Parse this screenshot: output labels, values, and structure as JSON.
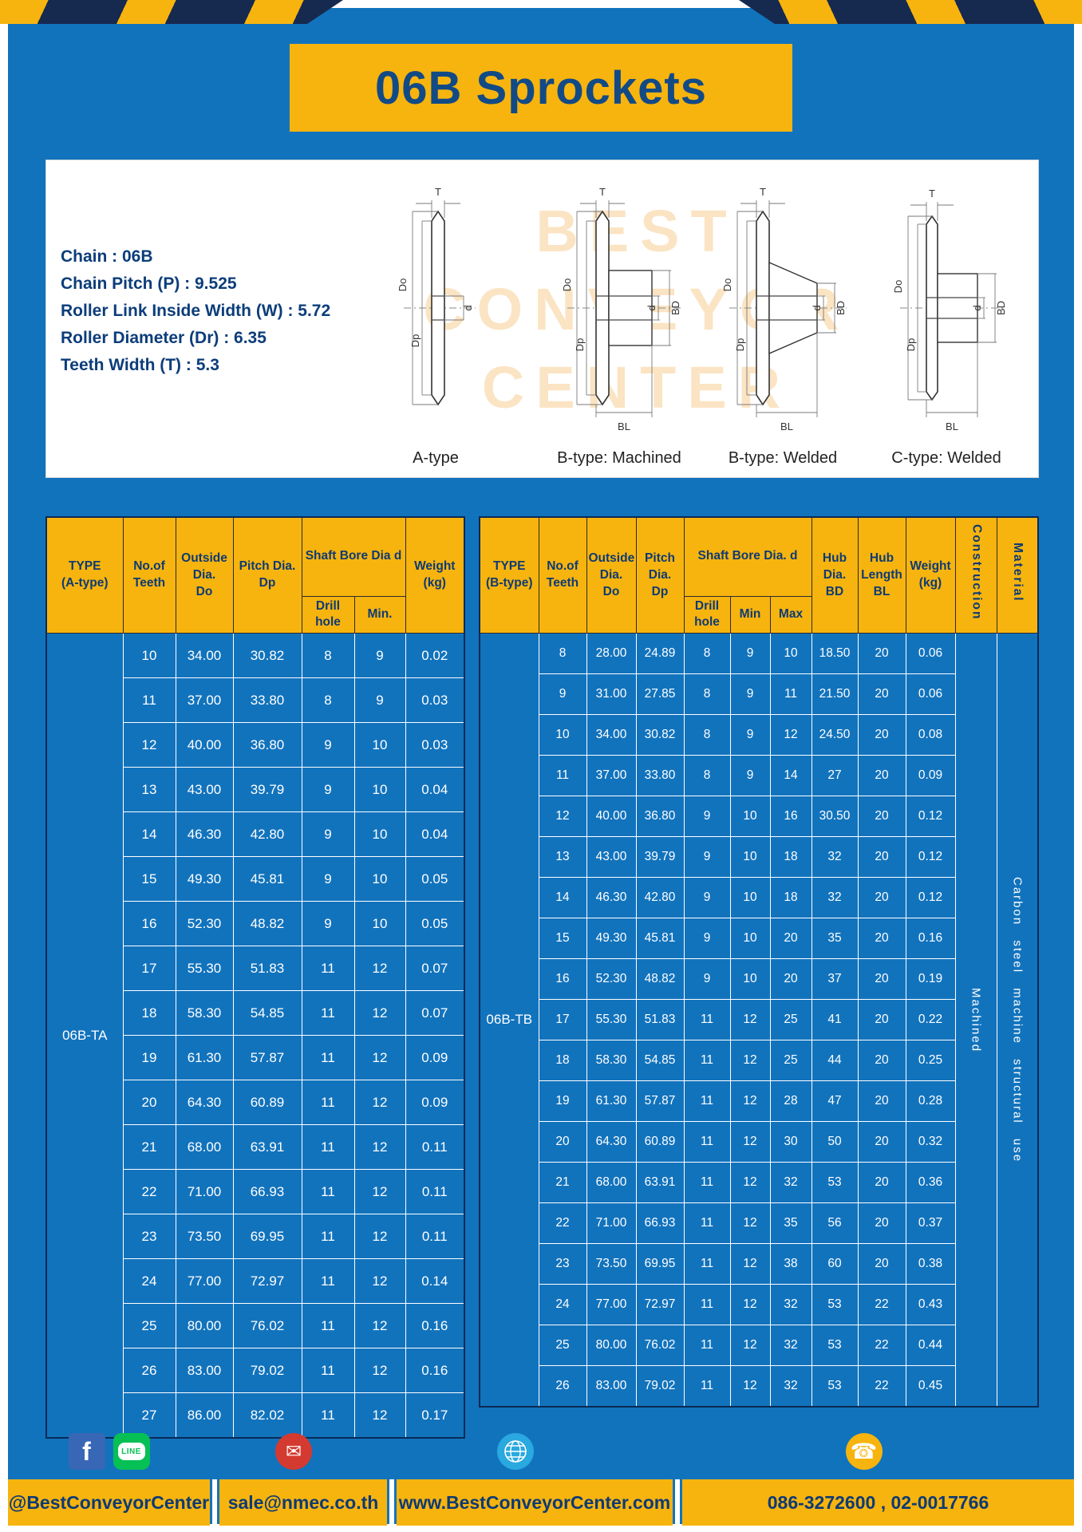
{
  "title": "06B Sprockets",
  "colors": {
    "page_blue": "#1273bd",
    "accent_yellow": "#f7b40e",
    "navy_text": "#0e3a74",
    "stripe_navy": "#16294f"
  },
  "specs": {
    "lines": [
      "Chain : 06B",
      "Chain Pitch (P) : 9.525",
      "Roller Link Inside Width (W) : 5.72",
      "Roller Diameter (Dr) : 6.35",
      "Teeth Width (T) : 5.3"
    ]
  },
  "diagram": {
    "watermark": {
      "line1": "BEST",
      "line2": "CONVEYOR",
      "line3": "CENTER"
    },
    "drawings": [
      {
        "caption": "A-type",
        "dims": {
          "t": "T",
          "do": "Do",
          "dp": "Dp",
          "d": "d"
        }
      },
      {
        "caption": "B-type: Machined",
        "dims": {
          "t": "T",
          "do": "Do",
          "dp": "Dp",
          "d": "d",
          "bd": "BD",
          "bl": "BL"
        }
      },
      {
        "caption": "B-type: Welded",
        "dims": {
          "t": "T",
          "do": "Do",
          "dp": "Dp",
          "d": "d",
          "bd": "BD",
          "bl": "BL"
        }
      },
      {
        "caption": "C-type: Welded",
        "dims": {
          "t": "T",
          "do": "Do",
          "dp": "Dp",
          "d": "d",
          "bd": "BD",
          "bl": "BL"
        }
      }
    ]
  },
  "table_a": {
    "type_label": "06B-TA",
    "headers": {
      "type": "TYPE\n(A-type)",
      "teeth": "No.of\nTeeth",
      "outside": "Outside\nDia.\nDo",
      "pitch": "Pitch Dia.\nDp",
      "shaft_group": "Shaft Bore Dia d",
      "drill": "Drill hole",
      "min": "Min.",
      "weight": "Weight\n(kg)"
    },
    "rows": [
      [
        "10",
        "34.00",
        "30.82",
        "8",
        "9",
        "0.02"
      ],
      [
        "11",
        "37.00",
        "33.80",
        "8",
        "9",
        "0.03"
      ],
      [
        "12",
        "40.00",
        "36.80",
        "9",
        "10",
        "0.03"
      ],
      [
        "13",
        "43.00",
        "39.79",
        "9",
        "10",
        "0.04"
      ],
      [
        "14",
        "46.30",
        "42.80",
        "9",
        "10",
        "0.04"
      ],
      [
        "15",
        "49.30",
        "45.81",
        "9",
        "10",
        "0.05"
      ],
      [
        "16",
        "52.30",
        "48.82",
        "9",
        "10",
        "0.05"
      ],
      [
        "17",
        "55.30",
        "51.83",
        "11",
        "12",
        "0.07"
      ],
      [
        "18",
        "58.30",
        "54.85",
        "11",
        "12",
        "0.07"
      ],
      [
        "19",
        "61.30",
        "57.87",
        "11",
        "12",
        "0.09"
      ],
      [
        "20",
        "64.30",
        "60.89",
        "11",
        "12",
        "0.09"
      ],
      [
        "21",
        "68.00",
        "63.91",
        "11",
        "12",
        "0.11"
      ],
      [
        "22",
        "71.00",
        "66.93",
        "11",
        "12",
        "0.11"
      ],
      [
        "23",
        "73.50",
        "69.95",
        "11",
        "12",
        "0.11"
      ],
      [
        "24",
        "77.00",
        "72.97",
        "11",
        "12",
        "0.14"
      ],
      [
        "25",
        "80.00",
        "76.02",
        "11",
        "12",
        "0.16"
      ],
      [
        "26",
        "83.00",
        "79.02",
        "11",
        "12",
        "0.16"
      ],
      [
        "27",
        "86.00",
        "82.02",
        "11",
        "12",
        "0.17"
      ]
    ]
  },
  "table_b": {
    "type_label": "06B-TB",
    "construction": "Machined",
    "material": "Carbon steel machine structural use",
    "headers": {
      "type": "TYPE\n(B-type)",
      "teeth": "No.of\nTeeth",
      "outside": "Outside\nDia.\nDo",
      "pitch": "Pitch\nDia.\nDp",
      "shaft_group": "Shaft Bore Dia.  d",
      "drill": "Drill hole",
      "min": "Min",
      "max": "Max",
      "hub_dia": "Hub\nDia.\nBD",
      "hub_len": "Hub\nLength\nBL",
      "weight": "Weight\n(kg)",
      "construction": "Construction",
      "material": "Material"
    },
    "rows": [
      [
        "8",
        "28.00",
        "24.89",
        "8",
        "9",
        "10",
        "18.50",
        "20",
        "0.06"
      ],
      [
        "9",
        "31.00",
        "27.85",
        "8",
        "9",
        "11",
        "21.50",
        "20",
        "0.06"
      ],
      [
        "10",
        "34.00",
        "30.82",
        "8",
        "9",
        "12",
        "24.50",
        "20",
        "0.08"
      ],
      [
        "11",
        "37.00",
        "33.80",
        "8",
        "9",
        "14",
        "27",
        "20",
        "0.09"
      ],
      [
        "12",
        "40.00",
        "36.80",
        "9",
        "10",
        "16",
        "30.50",
        "20",
        "0.12"
      ],
      [
        "13",
        "43.00",
        "39.79",
        "9",
        "10",
        "18",
        "32",
        "20",
        "0.12"
      ],
      [
        "14",
        "46.30",
        "42.80",
        "9",
        "10",
        "18",
        "32",
        "20",
        "0.12"
      ],
      [
        "15",
        "49.30",
        "45.81",
        "9",
        "10",
        "20",
        "35",
        "20",
        "0.16"
      ],
      [
        "16",
        "52.30",
        "48.82",
        "9",
        "10",
        "20",
        "37",
        "20",
        "0.19"
      ],
      [
        "17",
        "55.30",
        "51.83",
        "11",
        "12",
        "25",
        "41",
        "20",
        "0.22"
      ],
      [
        "18",
        "58.30",
        "54.85",
        "11",
        "12",
        "25",
        "44",
        "20",
        "0.25"
      ],
      [
        "19",
        "61.30",
        "57.87",
        "11",
        "12",
        "28",
        "47",
        "20",
        "0.28"
      ],
      [
        "20",
        "64.30",
        "60.89",
        "11",
        "12",
        "30",
        "50",
        "20",
        "0.32"
      ],
      [
        "21",
        "68.00",
        "63.91",
        "11",
        "12",
        "32",
        "53",
        "20",
        "0.36"
      ],
      [
        "22",
        "71.00",
        "66.93",
        "11",
        "12",
        "35",
        "56",
        "20",
        "0.37"
      ],
      [
        "23",
        "73.50",
        "69.95",
        "11",
        "12",
        "38",
        "60",
        "20",
        "0.38"
      ],
      [
        "24",
        "77.00",
        "72.97",
        "11",
        "12",
        "32",
        "53",
        "22",
        "0.43"
      ],
      [
        "25",
        "80.00",
        "76.02",
        "11",
        "12",
        "32",
        "53",
        "22",
        "0.44"
      ],
      [
        "26",
        "83.00",
        "79.02",
        "11",
        "12",
        "32",
        "53",
        "22",
        "0.45"
      ]
    ]
  },
  "footer": {
    "facebook_line_label": "@BestConveyorCenter",
    "email_label": "sale@nmec.co.th",
    "website_label": "www.BestConveyorCenter.com",
    "phone_label": "086-3272600 , 02-0017766",
    "line_icon_text": "LINE",
    "facebook_icon_glyph": "f",
    "email_icon_glyph": "✉",
    "phone_icon_glyph": "☎"
  }
}
